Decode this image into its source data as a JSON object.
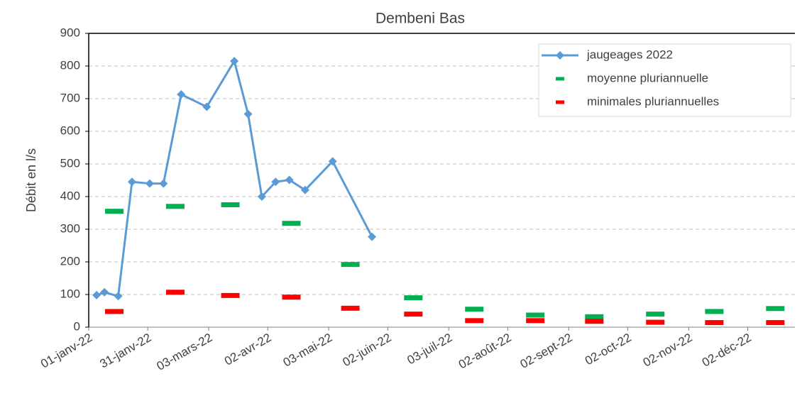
{
  "chart_data": {
    "type": "line",
    "title": "Dembeni Bas",
    "y_label": "Débit en l/s",
    "xlim": [
      "2022-01-01",
      "2022-12-26"
    ],
    "xticks": [
      {
        "value": "2022-01-01",
        "label": "01-janv-22"
      },
      {
        "value": "2022-01-31",
        "label": "31-janv-22"
      },
      {
        "value": "2022-03-03",
        "label": "03-mars-22"
      },
      {
        "value": "2022-04-02",
        "label": "02-avr-22"
      },
      {
        "value": "2022-05-03",
        "label": "03-mai-22"
      },
      {
        "value": "2022-06-02",
        "label": "02-juin-22"
      },
      {
        "value": "2022-07-03",
        "label": "03-juil-22"
      },
      {
        "value": "2022-08-02",
        "label": "02-août-22"
      },
      {
        "value": "2022-09-02",
        "label": "02-sept-22"
      },
      {
        "value": "2022-10-02",
        "label": "02-oct-22"
      },
      {
        "value": "2022-11-02",
        "label": "02-nov-22"
      },
      {
        "value": "2022-12-02",
        "label": "02-déc-22"
      }
    ],
    "ylim": [
      0,
      900
    ],
    "yticks": [
      0,
      100,
      200,
      300,
      400,
      500,
      600,
      700,
      800,
      900
    ],
    "grid": true,
    "legend": "top-right",
    "series": [
      {
        "name": "jaugeages 2022",
        "color": "#5b9bd5",
        "style": "line-marker",
        "x": [
          "2022-01-05",
          "2022-01-09",
          "2022-01-16",
          "2022-01-23",
          "2022-02-01",
          "2022-02-08",
          "2022-02-17",
          "2022-03-02",
          "2022-03-16",
          "2022-03-23",
          "2022-03-30",
          "2022-04-06",
          "2022-04-13",
          "2022-04-21",
          "2022-05-05",
          "2022-05-25"
        ],
        "values": [
          98,
          107,
          95,
          445,
          440,
          440,
          713,
          675,
          815,
          653,
          400,
          445,
          451,
          420,
          508,
          277
        ]
      },
      {
        "name": "moyenne pluriannuelle",
        "color": "#00b050",
        "style": "dash",
        "x": [
          "2022-01-14",
          "2022-02-14",
          "2022-03-14",
          "2022-04-14",
          "2022-05-14",
          "2022-06-15",
          "2022-07-16",
          "2022-08-16",
          "2022-09-15",
          "2022-10-16",
          "2022-11-15",
          "2022-12-16"
        ],
        "values": [
          355,
          370,
          375,
          318,
          192,
          90,
          55,
          37,
          32,
          40,
          48,
          57
        ]
      },
      {
        "name": "minimales pluriannuelles",
        "color": "#ff0000",
        "style": "dash",
        "x": [
          "2022-01-14",
          "2022-02-14",
          "2022-03-14",
          "2022-04-14",
          "2022-05-14",
          "2022-06-15",
          "2022-07-16",
          "2022-08-16",
          "2022-09-15",
          "2022-10-16",
          "2022-11-15",
          "2022-12-16"
        ],
        "values": [
          48,
          107,
          97,
          92,
          58,
          40,
          20,
          20,
          18,
          15,
          14,
          14
        ]
      }
    ]
  }
}
